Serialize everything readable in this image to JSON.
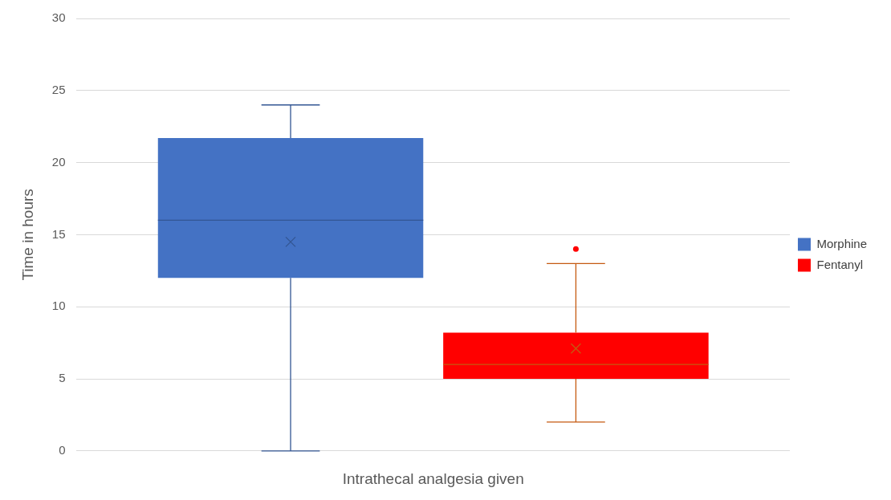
{
  "chart_data": {
    "type": "box",
    "xlabel": "Intrathecal analgesia given",
    "ylabel": "Time in hours",
    "categories": [
      null
    ],
    "ylim": [
      0,
      30
    ],
    "yticks": [
      0,
      5,
      10,
      15,
      20,
      25,
      30
    ],
    "grid": "y",
    "legend": "right",
    "marker": "cross",
    "series": [
      {
        "name": "Morphine",
        "color": "#4472c4",
        "boxes": [
          {
            "low": 0,
            "q1": 12,
            "median": 16,
            "q3": 21.7,
            "high": 24,
            "mean": 14.5
          }
        ]
      },
      {
        "name": "Fentanyl",
        "color": "#ff0000",
        "boxes": [
          {
            "low": 2,
            "q1": 5,
            "median": 6,
            "q3": 8.2,
            "high": 13,
            "mean": 7.1,
            "outliers": [
              14
            ]
          }
        ]
      }
    ]
  }
}
